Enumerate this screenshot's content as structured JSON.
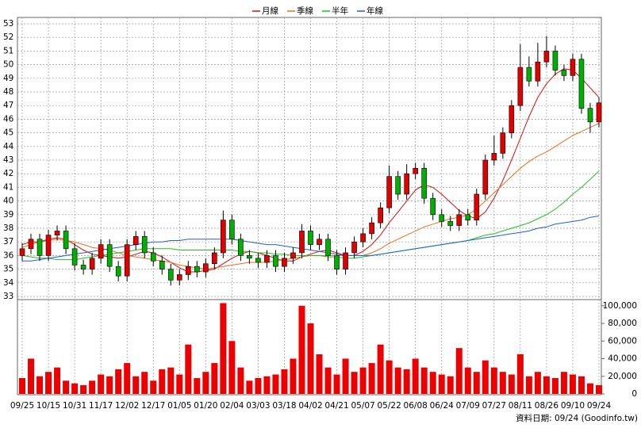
{
  "chart_data": {
    "type": "candlestick",
    "categories": [
      "09/25",
      null,
      null,
      "10/15",
      null,
      null,
      "10/31",
      null,
      null,
      "11/17",
      null,
      null,
      "12/02",
      null,
      null,
      "12/17",
      null,
      null,
      "01/05",
      null,
      null,
      "01/20",
      null,
      null,
      "02/04",
      null,
      null,
      "03/03",
      null,
      null,
      "03/18",
      null,
      null,
      "04/02",
      null,
      null,
      "04/21",
      null,
      null,
      "05/07",
      null,
      null,
      "05/22",
      null,
      null,
      "06/08",
      null,
      null,
      "06/24",
      null,
      null,
      "07/09",
      null,
      null,
      "07/27",
      null,
      null,
      "08/11",
      null,
      null,
      "08/26",
      null,
      null,
      "09/10",
      null,
      null,
      "09/24"
    ],
    "open": [
      36.0,
      36.5,
      37.2,
      36.0,
      37.5,
      37.8,
      36.5,
      35.3,
      35.0,
      35.8,
      36.8,
      35.2,
      34.5,
      36.8,
      37.4,
      36.2,
      35.6,
      35.0,
      34.2,
      34.6,
      35.2,
      34.8,
      35.4,
      36.2,
      38.6,
      37.2,
      36.0,
      35.8,
      35.5,
      36.0,
      35.2,
      35.8,
      36.2,
      37.8,
      36.8,
      37.2,
      36.0,
      35.0,
      36.2,
      37.0,
      37.6,
      38.4,
      39.5,
      41.8,
      40.5,
      42.0,
      42.4,
      40.2,
      39.0,
      38.5,
      38.2,
      39.0,
      38.6,
      40.5,
      43.0,
      43.5,
      45.0,
      47.0,
      49.8,
      48.8,
      50.2,
      51.0,
      49.6,
      49.2,
      50.4,
      46.8,
      45.8
    ],
    "high": [
      36.9,
      37.6,
      37.6,
      37.9,
      38.2,
      38.2,
      36.9,
      35.7,
      36.2,
      37.2,
      37.2,
      35.6,
      37.2,
      37.8,
      37.8,
      36.6,
      36.0,
      35.4,
      35.0,
      35.6,
      35.6,
      35.8,
      36.6,
      39.3,
      39.0,
      37.6,
      36.4,
      36.2,
      36.4,
      36.4,
      36.2,
      36.6,
      38.3,
      38.2,
      37.6,
      37.6,
      36.4,
      36.6,
      37.4,
      38.0,
      38.8,
      39.9,
      42.6,
      42.2,
      42.7,
      42.8,
      42.8,
      40.6,
      39.4,
      38.9,
      39.4,
      39.4,
      40.9,
      43.4,
      44.8,
      45.4,
      47.4,
      51.5,
      50.6,
      51.6,
      52.1,
      51.4,
      50.0,
      50.8,
      50.8,
      47.2,
      47.6
    ],
    "low": [
      35.6,
      36.1,
      35.6,
      35.6,
      37.1,
      36.1,
      34.9,
      34.6,
      34.6,
      35.4,
      34.8,
      34.1,
      34.1,
      36.4,
      35.8,
      35.2,
      34.6,
      33.8,
      33.8,
      34.2,
      34.4,
      34.4,
      35.0,
      35.8,
      36.8,
      35.6,
      35.4,
      35.1,
      35.1,
      34.8,
      34.8,
      35.4,
      35.8,
      36.4,
      36.4,
      35.6,
      34.6,
      34.6,
      35.8,
      36.6,
      37.2,
      38.0,
      39.1,
      40.1,
      40.1,
      41.6,
      39.8,
      38.6,
      38.1,
      37.8,
      37.8,
      38.2,
      38.2,
      40.1,
      42.6,
      43.1,
      44.6,
      46.6,
      48.4,
      48.4,
      49.8,
      49.2,
      48.8,
      48.8,
      46.4,
      45.0,
      45.4
    ],
    "close": [
      36.5,
      37.2,
      36.0,
      37.5,
      37.8,
      36.5,
      35.3,
      35.0,
      35.8,
      36.8,
      35.2,
      34.5,
      36.8,
      37.4,
      36.2,
      35.6,
      35.0,
      34.2,
      34.6,
      35.2,
      34.8,
      35.4,
      36.2,
      38.6,
      37.2,
      36.0,
      35.8,
      35.5,
      36.0,
      35.2,
      35.8,
      36.2,
      37.8,
      36.8,
      37.2,
      36.0,
      35.0,
      36.2,
      37.0,
      37.6,
      38.4,
      39.5,
      41.8,
      40.5,
      42.0,
      42.4,
      40.2,
      39.0,
      38.5,
      38.2,
      39.0,
      38.6,
      40.5,
      43.0,
      43.5,
      45.0,
      47.0,
      49.8,
      48.8,
      50.2,
      51.0,
      49.6,
      49.2,
      50.4,
      46.8,
      45.8,
      47.2
    ],
    "up_color": "#e00000",
    "down_color": "#00b000",
    "series": [
      {
        "name": "月線",
        "color": "#d01010",
        "values": [
          36.8,
          37.0,
          37.0,
          37.2,
          37.3,
          37.2,
          36.8,
          36.4,
          36.1,
          36.0,
          35.9,
          35.8,
          35.9,
          36.1,
          36.3,
          36.2,
          35.9,
          35.5,
          35.1,
          34.8,
          34.8,
          34.9,
          35.0,
          35.4,
          35.8,
          36.1,
          36.3,
          36.2,
          36.0,
          35.8,
          35.6,
          35.6,
          35.9,
          36.1,
          36.3,
          36.4,
          36.2,
          36.0,
          36.0,
          36.3,
          36.8,
          37.5,
          38.4,
          39.2,
          40.0,
          40.8,
          41.2,
          41.0,
          40.5,
          39.9,
          39.3,
          38.9,
          38.7,
          39.2,
          40.2,
          41.5,
          43.0,
          44.6,
          46.2,
          47.6,
          48.6,
          49.3,
          49.7,
          49.6,
          49.0,
          48.3,
          47.6
        ]
      },
      {
        "name": "季線",
        "color": "#e87020",
        "values": [
          36.6,
          36.8,
          37.0,
          37.1,
          37.2,
          37.1,
          37.0,
          36.8,
          36.6,
          36.5,
          36.4,
          36.2,
          36.0,
          35.9,
          35.8,
          35.7,
          35.6,
          35.5,
          35.3,
          35.2,
          35.1,
          35.0,
          35.1,
          35.2,
          35.3,
          35.4,
          35.5,
          35.5,
          35.5,
          35.6,
          35.7,
          35.8,
          35.9,
          36.0,
          36.0,
          36.0,
          36.0,
          36.0,
          36.0,
          36.0,
          36.2,
          36.5,
          36.9,
          37.2,
          37.5,
          37.8,
          38.1,
          38.3,
          38.5,
          38.7,
          38.8,
          39.0,
          39.4,
          40.0,
          40.6,
          41.2,
          41.8,
          42.4,
          42.9,
          43.3,
          43.6,
          44.0,
          44.4,
          44.8,
          45.1,
          45.4,
          45.7
        ]
      },
      {
        "name": "半年",
        "color": "#20c020",
        "values": [
          36.0,
          35.9,
          35.8,
          35.8,
          35.7,
          35.7,
          35.7,
          35.8,
          35.9,
          36.0,
          36.1,
          36.2,
          36.3,
          36.4,
          36.5,
          36.5,
          36.5,
          36.5,
          36.4,
          36.4,
          36.4,
          36.4,
          36.4,
          36.4,
          36.4,
          36.3,
          36.3,
          36.2,
          36.2,
          36.1,
          36.1,
          36.0,
          36.0,
          36.0,
          36.0,
          35.9,
          35.9,
          35.8,
          35.8,
          35.9,
          36.0,
          36.1,
          36.2,
          36.3,
          36.4,
          36.5,
          36.6,
          36.7,
          36.8,
          36.9,
          37.0,
          37.1,
          37.3,
          37.5,
          37.6,
          37.8,
          38.0,
          38.2,
          38.4,
          38.7,
          39.0,
          39.4,
          39.9,
          40.5,
          41.0,
          41.6,
          42.2
        ]
      },
      {
        "name": "年線",
        "color": "#2060d0",
        "values": [
          35.6,
          35.6,
          35.7,
          35.8,
          35.9,
          36.0,
          36.1,
          36.2,
          36.3,
          36.4,
          36.5,
          36.6,
          36.7,
          36.8,
          36.9,
          37.0,
          37.0,
          37.1,
          37.1,
          37.2,
          37.2,
          37.2,
          37.2,
          37.2,
          37.2,
          37.1,
          37.0,
          36.9,
          36.8,
          36.8,
          36.7,
          36.6,
          36.5,
          36.4,
          36.3,
          36.2,
          36.1,
          36.0,
          36.0,
          36.0,
          36.0,
          36.1,
          36.2,
          36.3,
          36.4,
          36.5,
          36.6,
          36.7,
          36.8,
          36.9,
          37.0,
          37.1,
          37.2,
          37.3,
          37.4,
          37.5,
          37.6,
          37.7,
          37.8,
          38.0,
          38.1,
          38.3,
          38.4,
          38.5,
          38.6,
          38.8,
          38.9
        ]
      }
    ],
    "ylim": [
      33,
      53
    ],
    "yticks": [
      33,
      34,
      35,
      36,
      37,
      38,
      39,
      40,
      41,
      42,
      43,
      44,
      45,
      46,
      47,
      48,
      49,
      50,
      51,
      52,
      53
    ],
    "grid": true,
    "volume": {
      "color": "#ee0000",
      "ylim": [
        0,
        107000
      ],
      "yticks": [
        0,
        {
          "value": 20000,
          "label": "20,000"
        },
        {
          "value": 40000,
          "label": "40,000"
        },
        {
          "value": 60000,
          "label": "60,000"
        },
        {
          "value": 80000,
          "label": "80,000"
        },
        {
          "value": 100000,
          "label": "100,000"
        }
      ],
      "values": [
        18000,
        40000,
        20000,
        25000,
        30000,
        15000,
        12000,
        10000,
        15000,
        22000,
        20000,
        28000,
        35000,
        20000,
        25000,
        15000,
        28000,
        30000,
        22000,
        56000,
        18000,
        25000,
        35000,
        103000,
        60000,
        30000,
        15000,
        18000,
        20000,
        22000,
        28000,
        40000,
        100000,
        80000,
        45000,
        30000,
        22000,
        40000,
        25000,
        30000,
        35000,
        56000,
        38000,
        30000,
        28000,
        40000,
        30000,
        25000,
        22000,
        20000,
        52000,
        30000,
        25000,
        38000,
        30000,
        25000,
        22000,
        45000,
        20000,
        25000,
        20000,
        18000,
        25000,
        22000,
        20000,
        12000,
        10000
      ]
    },
    "source": "資料日期: 09/24  (Goodinfo.tw)"
  }
}
